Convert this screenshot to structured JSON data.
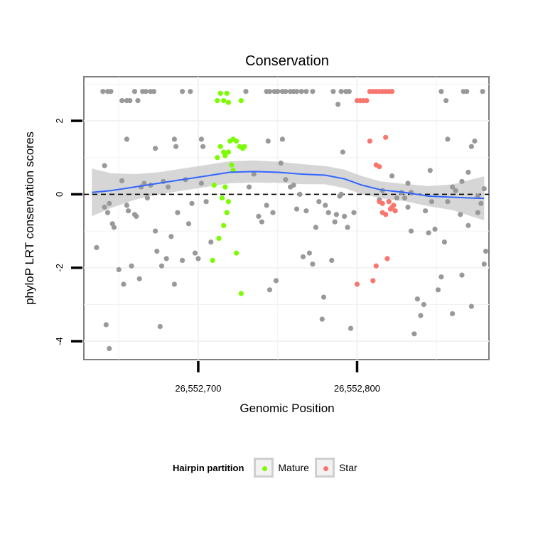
{
  "chart_data": {
    "type": "scatter",
    "title": "Conservation",
    "xlabel": "Genomic Position",
    "ylabel": "phyloP LRT conservation scores",
    "xlim": [
      26552628,
      26552883
    ],
    "ylim": [
      -4.5,
      3.2
    ],
    "x_ticks": [
      {
        "value": 26552700,
        "label": "26,552,700"
      },
      {
        "value": 26552800,
        "label": "26,552,800"
      }
    ],
    "y_ticks": [
      {
        "value": -4,
        "label": "-4"
      },
      {
        "value": -2,
        "label": "-2"
      },
      {
        "value": 0,
        "label": "0"
      },
      {
        "value": 2,
        "label": "2"
      }
    ],
    "grid": true,
    "reference_line": {
      "y": 0,
      "style": "dashed"
    },
    "colors": {
      "Other": "#999999",
      "Mature": "#7cfc00",
      "Star": "#f8766d",
      "smooth": "#3366ff",
      "ribbon": "#c8c8c8"
    },
    "series": [
      {
        "group": "Other",
        "points": [
          [
            26552640,
            2.8
          ],
          [
            26552643,
            2.8
          ],
          [
            26552645,
            2.8
          ],
          [
            26552652,
            2.55
          ],
          [
            26552655,
            2.55
          ],
          [
            26552657,
            2.55
          ],
          [
            26552660,
            2.8
          ],
          [
            26552662,
            2.55
          ],
          [
            26552665,
            2.8
          ],
          [
            26552667,
            2.8
          ],
          [
            26552670,
            2.8
          ],
          [
            26552672,
            2.8
          ],
          [
            26552690,
            2.8
          ],
          [
            26552695,
            2.8
          ],
          [
            26552730,
            2.8
          ],
          [
            26552743,
            2.8
          ],
          [
            26552745,
            2.8
          ],
          [
            26552748,
            2.8
          ],
          [
            26552750,
            2.8
          ],
          [
            26552753,
            2.8
          ],
          [
            26552755,
            2.8
          ],
          [
            26552758,
            2.8
          ],
          [
            26552760,
            2.8
          ],
          [
            26552762,
            2.8
          ],
          [
            26552765,
            2.8
          ],
          [
            26552768,
            2.8
          ],
          [
            26552772,
            2.8
          ],
          [
            26552785,
            2.8
          ],
          [
            26552790,
            2.8
          ],
          [
            26552793,
            2.8
          ],
          [
            26552795,
            2.8
          ],
          [
            26552788,
            2.45
          ],
          [
            26552853,
            2.8
          ],
          [
            26552856,
            2.55
          ],
          [
            26552867,
            2.8
          ],
          [
            26552869,
            2.8
          ],
          [
            26552879,
            2.8
          ],
          [
            26552641,
            0.78
          ],
          [
            26552655,
            1.5
          ],
          [
            26552673,
            1.25
          ],
          [
            26552685,
            1.5
          ],
          [
            26552686,
            1.3
          ],
          [
            26552702,
            1.5
          ],
          [
            26552703,
            1.3
          ],
          [
            26552744,
            1.45
          ],
          [
            26552753,
            1.5
          ],
          [
            26552791,
            1.15
          ],
          [
            26552857,
            1.5
          ],
          [
            26552872,
            1.3
          ],
          [
            26552874,
            1.45
          ],
          [
            26552636,
            -1.45
          ],
          [
            26552641,
            -0.35
          ],
          [
            26552643,
            -0.5
          ],
          [
            26552644,
            -0.25
          ],
          [
            26552646,
            -0.8
          ],
          [
            26552647,
            -0.9
          ],
          [
            26552650,
            -2.05
          ],
          [
            26552652,
            0.37
          ],
          [
            26552653,
            -2.45
          ],
          [
            26552655,
            -0.3
          ],
          [
            26552656,
            -0.45
          ],
          [
            26552658,
            -1.95
          ],
          [
            26552660,
            -0.55
          ],
          [
            26552661,
            -0.6
          ],
          [
            26552663,
            -2.3
          ],
          [
            26552664,
            0.2
          ],
          [
            26552666,
            0.3
          ],
          [
            26552668,
            -0.1
          ],
          [
            26552670,
            0.25
          ],
          [
            26552673,
            -1.0
          ],
          [
            26552674,
            -1.55
          ],
          [
            26552677,
            -1.95
          ],
          [
            26552678,
            0.35
          ],
          [
            26552680,
            -1.75
          ],
          [
            26552681,
            0.2
          ],
          [
            26552683,
            -1.15
          ],
          [
            26552685,
            -2.45
          ],
          [
            26552687,
            -0.5
          ],
          [
            26552690,
            -1.8
          ],
          [
            26552692,
            0.4
          ],
          [
            26552694,
            -0.8
          ],
          [
            26552696,
            -0.25
          ],
          [
            26552698,
            -1.6
          ],
          [
            26552700,
            -1.75
          ],
          [
            26552702,
            0.3
          ],
          [
            26552705,
            -0.2
          ],
          [
            26552708,
            -1.3
          ],
          [
            26552642,
            -3.55
          ],
          [
            26552644,
            -4.2
          ],
          [
            26552676,
            -3.6
          ],
          [
            26552732,
            0.2
          ],
          [
            26552735,
            0.55
          ],
          [
            26552738,
            -0.6
          ],
          [
            26552740,
            -0.75
          ],
          [
            26552743,
            -0.3
          ],
          [
            26552745,
            -2.6
          ],
          [
            26552747,
            -0.5
          ],
          [
            26552749,
            -2.35
          ],
          [
            26552752,
            0.85
          ],
          [
            26552755,
            0.4
          ],
          [
            26552758,
            0.2
          ],
          [
            26552760,
            0.25
          ],
          [
            26552762,
            -0.4
          ],
          [
            26552764,
            0.0
          ],
          [
            26552766,
            -1.7
          ],
          [
            26552768,
            -0.45
          ],
          [
            26552770,
            -1.6
          ],
          [
            26552772,
            -1.9
          ],
          [
            26552774,
            -0.9
          ],
          [
            26552776,
            -0.2
          ],
          [
            26552778,
            -3.4
          ],
          [
            26552779,
            -2.8
          ],
          [
            26552780,
            -0.3
          ],
          [
            26552782,
            -0.5
          ],
          [
            26552784,
            -1.8
          ],
          [
            26552786,
            -0.75
          ],
          [
            26552787,
            -0.55
          ],
          [
            26552789,
            -0.05
          ],
          [
            26552790,
            0.0
          ],
          [
            26552792,
            -0.6
          ],
          [
            26552794,
            -0.9
          ],
          [
            26552796,
            -3.65
          ],
          [
            26552798,
            -0.5
          ],
          [
            26552814,
            -0.15
          ],
          [
            26552816,
            0.1
          ],
          [
            26552822,
            0.5
          ],
          [
            26552825,
            -0.1
          ],
          [
            26552828,
            0.05
          ],
          [
            26552830,
            -0.1
          ],
          [
            26552832,
            -0.35
          ],
          [
            26552834,
            -1.0
          ],
          [
            26552836,
            -3.8
          ],
          [
            26552838,
            -2.85
          ],
          [
            26552840,
            -3.3
          ],
          [
            26552842,
            -3.0
          ],
          [
            26552845,
            -1.05
          ],
          [
            26552847,
            -0.2
          ],
          [
            26552849,
            -0.95
          ],
          [
            26552851,
            -2.6
          ],
          [
            26552853,
            -2.25
          ],
          [
            26552855,
            -1.3
          ],
          [
            26552857,
            -0.2
          ],
          [
            26552860,
            -3.25
          ],
          [
            26552862,
            0.1
          ],
          [
            26552865,
            -0.55
          ],
          [
            26552866,
            -2.2
          ],
          [
            26552870,
            -0.85
          ],
          [
            26552872,
            -3.05
          ],
          [
            26552876,
            -0.5
          ],
          [
            26552878,
            -0.25
          ],
          [
            26552880,
            -1.9
          ],
          [
            26552881,
            -1.55
          ],
          [
            26552880,
            0.15
          ],
          [
            26552876,
            -0.05
          ],
          [
            26552846,
            0.65
          ],
          [
            26552820,
            -0.2
          ],
          [
            26552832,
            0.3
          ],
          [
            26552843,
            -0.45
          ],
          [
            26552860,
            0.2
          ],
          [
            26552866,
            0.35
          ],
          [
            26552870,
            0.6
          ],
          [
            26552834,
            0.05
          ]
        ]
      },
      {
        "group": "Mature",
        "points": [
          [
            26552712,
            2.55
          ],
          [
            26552714,
            2.75
          ],
          [
            26552716,
            2.55
          ],
          [
            26552718,
            2.75
          ],
          [
            26552719,
            2.5
          ],
          [
            26552727,
            2.55
          ],
          [
            26552712,
            1.0
          ],
          [
            26552714,
            1.3
          ],
          [
            26552716,
            1.15
          ],
          [
            26552717,
            1.05
          ],
          [
            26552719,
            1.15
          ],
          [
            26552720,
            1.45
          ],
          [
            26552722,
            1.5
          ],
          [
            26552724,
            1.45
          ],
          [
            26552726,
            1.3
          ],
          [
            26552728,
            1.25
          ],
          [
            26552729,
            1.3
          ],
          [
            26552722,
            0.65
          ],
          [
            26552721,
            0.8
          ],
          [
            26552710,
            0.25
          ],
          [
            26552715,
            -0.1
          ],
          [
            26552717,
            0.2
          ],
          [
            26552718,
            -0.5
          ],
          [
            26552719,
            -0.2
          ],
          [
            26552716,
            -0.85
          ],
          [
            26552713,
            -1.2
          ],
          [
            26552709,
            -1.8
          ],
          [
            26552724,
            -1.6
          ],
          [
            26552727,
            -2.7
          ]
        ]
      },
      {
        "group": "Star",
        "points": [
          [
            26552800,
            2.55
          ],
          [
            26552802,
            2.55
          ],
          [
            26552804,
            2.55
          ],
          [
            26552806,
            2.55
          ],
          [
            26552808,
            2.8
          ],
          [
            26552810,
            2.8
          ],
          [
            26552812,
            2.8
          ],
          [
            26552814,
            2.8
          ],
          [
            26552816,
            2.8
          ],
          [
            26552818,
            2.8
          ],
          [
            26552820,
            2.8
          ],
          [
            26552822,
            2.8
          ],
          [
            26552808,
            1.45
          ],
          [
            26552818,
            1.55
          ],
          [
            26552812,
            0.8
          ],
          [
            26552814,
            0.75
          ],
          [
            26552800,
            -2.45
          ],
          [
            26552812,
            -1.95
          ],
          [
            26552814,
            -0.2
          ],
          [
            26552816,
            -0.5
          ],
          [
            26552818,
            -0.55
          ],
          [
            26552820,
            -0.2
          ],
          [
            26552822,
            -0.35
          ],
          [
            26552824,
            -0.45
          ],
          [
            26552819,
            -1.75
          ],
          [
            26552810,
            -2.35
          ],
          [
            26552816,
            -0.25
          ],
          [
            26552821,
            -0.4
          ],
          [
            26552823,
            -0.3
          ]
        ]
      }
    ],
    "smooth_line": [
      [
        26552633,
        0.05
      ],
      [
        26552645,
        0.1
      ],
      [
        26552660,
        0.2
      ],
      [
        26552675,
        0.3
      ],
      [
        26552690,
        0.4
      ],
      [
        26552705,
        0.5
      ],
      [
        26552720,
        0.6
      ],
      [
        26552735,
        0.62
      ],
      [
        26552750,
        0.6
      ],
      [
        26552765,
        0.55
      ],
      [
        26552780,
        0.52
      ],
      [
        26552792,
        0.42
      ],
      [
        26552803,
        0.25
      ],
      [
        26552815,
        0.12
      ],
      [
        26552830,
        0.05
      ],
      [
        26552845,
        -0.05
      ],
      [
        26552860,
        -0.08
      ],
      [
        26552872,
        -0.1
      ],
      [
        26552880,
        -0.11
      ]
    ],
    "ribbon_halfwidth": [
      [
        26552633,
        0.65
      ],
      [
        26552650,
        0.4
      ],
      [
        26552670,
        0.3
      ],
      [
        26552690,
        0.3
      ],
      [
        26552710,
        0.3
      ],
      [
        26552735,
        0.3
      ],
      [
        26552760,
        0.28
      ],
      [
        26552780,
        0.25
      ],
      [
        26552800,
        0.25
      ],
      [
        26552820,
        0.22
      ],
      [
        26552840,
        0.25
      ],
      [
        26552860,
        0.35
      ],
      [
        26552880,
        0.6
      ]
    ],
    "legend": {
      "title": "Hairpin partition",
      "entries": [
        {
          "label": "Mature",
          "group": "Mature"
        },
        {
          "label": "Star",
          "group": "Star"
        }
      ],
      "position": "bottom"
    }
  }
}
